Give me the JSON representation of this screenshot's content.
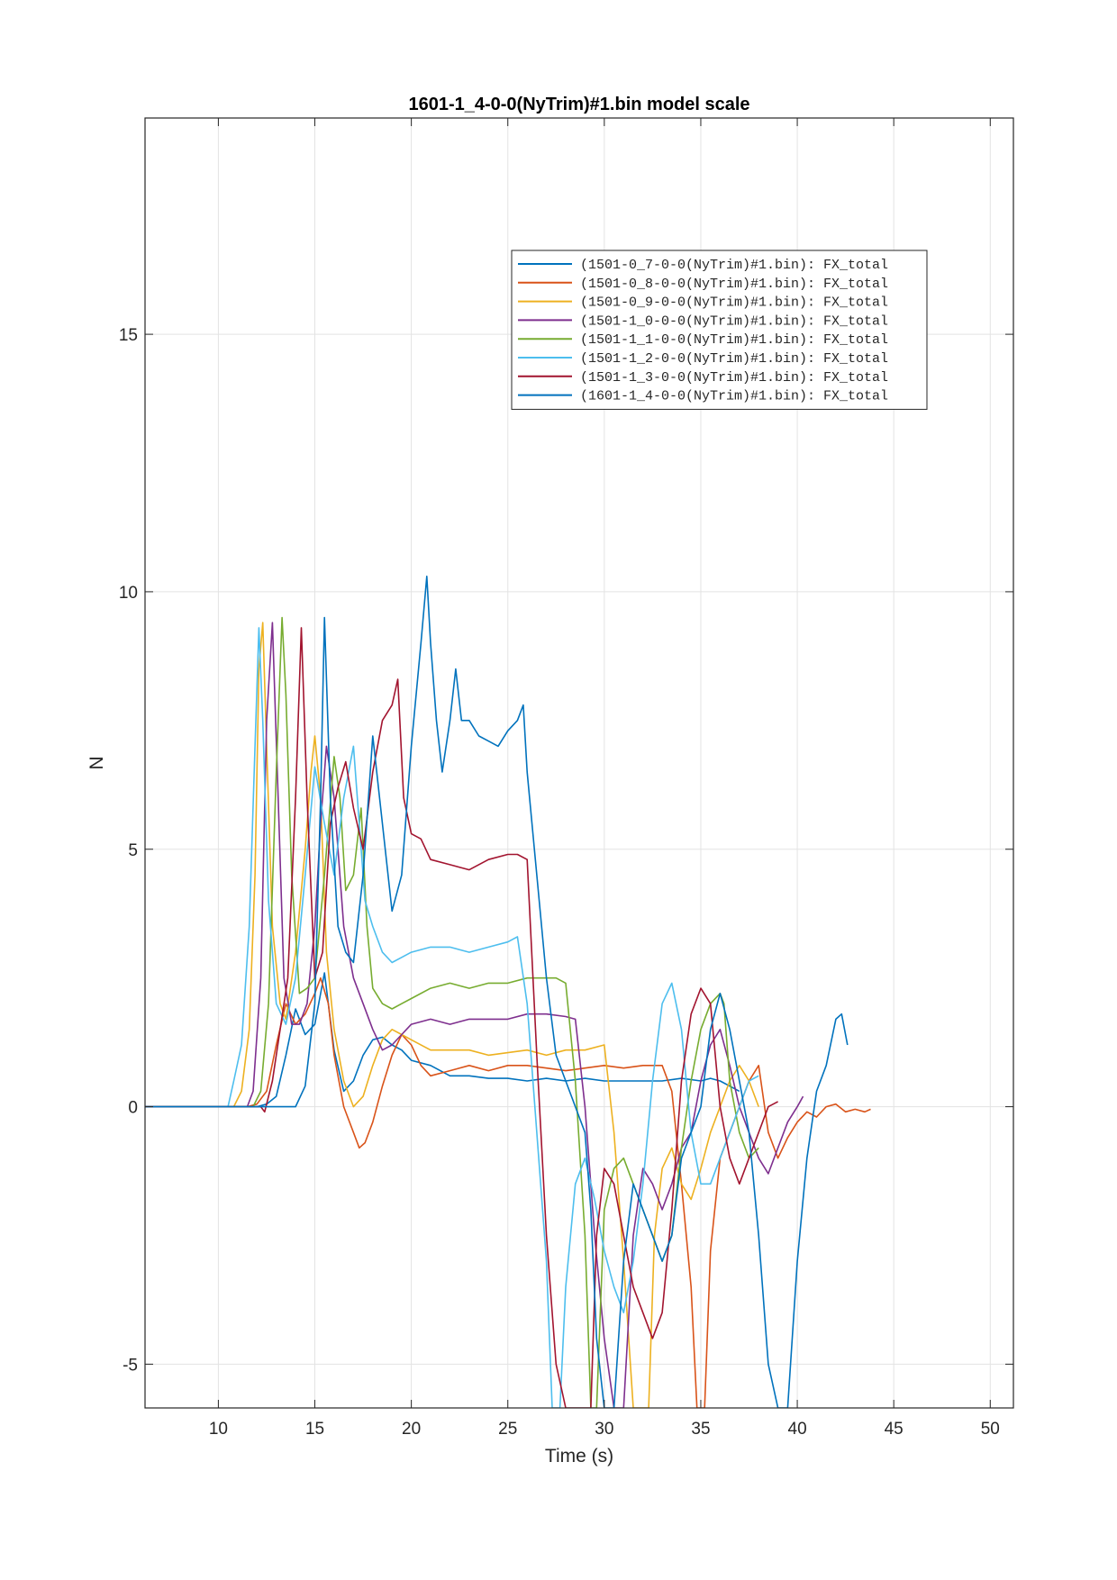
{
  "chart_data": {
    "type": "line",
    "title": "1601-1_4-0-0(NyTrim)#1.bin  model scale",
    "xlabel": "Time (s)",
    "ylabel": "N",
    "xlim": [
      6.2,
      51.2
    ],
    "ylim": [
      -5.85,
      19.2
    ],
    "xticks": [
      10,
      15,
      20,
      25,
      30,
      35,
      40,
      45,
      50
    ],
    "xtick_labels": [
      "10",
      "15",
      "20",
      "25",
      "30",
      "35",
      "40",
      "45",
      "50"
    ],
    "yticks": [
      -5,
      0,
      5,
      10,
      15
    ],
    "ytick_labels": [
      "-5",
      "0",
      "5",
      "10",
      "15"
    ],
    "grid": true,
    "legend_position": "upper-right",
    "series": [
      {
        "name": "(1501-0_7-0-0(NyTrim)#1.bin): FX_total",
        "color": "#0072BD",
        "x": [
          6.2,
          12.0,
          12.5,
          13.0,
          13.5,
          14.0,
          14.5,
          15.0,
          15.5,
          16.0,
          16.5,
          17.0,
          17.5,
          18.0,
          18.5,
          19.0,
          19.5,
          20.0,
          21.0,
          22.0,
          23.0,
          24.0,
          25.0,
          26.0,
          27.0,
          28.0,
          29.0,
          30.0,
          31.0,
          32.0,
          33.0,
          34.0,
          35.0,
          35.5,
          36.0,
          36.5,
          37.0
        ],
        "y": [
          0,
          0,
          0.05,
          0.2,
          1.0,
          1.9,
          1.4,
          1.6,
          2.6,
          1.1,
          0.3,
          0.5,
          1.0,
          1.3,
          1.35,
          1.2,
          1.1,
          0.9,
          0.8,
          0.6,
          0.6,
          0.55,
          0.55,
          0.5,
          0.55,
          0.5,
          0.55,
          0.5,
          0.5,
          0.5,
          0.5,
          0.55,
          0.5,
          0.55,
          0.5,
          0.4,
          0.3
        ]
      },
      {
        "name": "(1501-0_8-0-0(NyTrim)#1.bin): FX_total",
        "color": "#D95319",
        "x": [
          6.2,
          11.5,
          12.0,
          12.5,
          13.0,
          13.5,
          14.0,
          14.5,
          15.0,
          15.3,
          15.7,
          16.0,
          16.5,
          17.0,
          17.3,
          17.6,
          18.0,
          18.5,
          19.0,
          19.5,
          20.0,
          20.5,
          21.0,
          22.0,
          23.0,
          24.0,
          25.0,
          26.0,
          27.0,
          28.0,
          29.0,
          30.0,
          31.0,
          32.0,
          33.0,
          33.5,
          34.0,
          34.5,
          34.8,
          35.0,
          35.2,
          35.5,
          36.0,
          36.5,
          37.0,
          37.5,
          38.0,
          38.5,
          39.0,
          39.5,
          40.0,
          40.5,
          41.0,
          41.5,
          42.0,
          42.5,
          43.0,
          43.5,
          43.8
        ],
        "y": [
          0,
          0,
          0.05,
          0.3,
          1.2,
          2.0,
          1.6,
          1.8,
          2.2,
          2.5,
          2.0,
          1.0,
          0.0,
          -0.5,
          -0.8,
          -0.7,
          -0.3,
          0.4,
          1.0,
          1.4,
          1.2,
          0.8,
          0.6,
          0.7,
          0.8,
          0.7,
          0.8,
          0.8,
          0.75,
          0.7,
          0.75,
          0.8,
          0.75,
          0.8,
          0.8,
          0.3,
          -1.5,
          -3.5,
          -5.85,
          -5.85,
          -5.85,
          -2.8,
          -1.0,
          -0.5,
          0.0,
          0.5,
          0.8,
          -0.5,
          -1.0,
          -0.6,
          -0.3,
          -0.1,
          -0.2,
          0.0,
          0.05,
          -0.1,
          -0.05,
          -0.1,
          -0.05
        ]
      },
      {
        "name": "(1501-0_9-0-0(NyTrim)#1.bin): FX_total",
        "color": "#EDB120",
        "x": [
          6.2,
          10.8,
          11.2,
          11.6,
          11.9,
          12.1,
          12.3,
          12.5,
          12.8,
          13.2,
          13.5,
          14.0,
          14.5,
          14.8,
          15.0,
          15.3,
          15.6,
          16.0,
          16.5,
          17.0,
          17.5,
          18.0,
          18.5,
          19.0,
          19.5,
          20.0,
          21.0,
          22.0,
          23.0,
          24.0,
          25.0,
          26.0,
          27.0,
          28.0,
          29.0,
          30.0,
          30.5,
          31.0,
          31.5,
          32.0,
          32.3,
          32.6,
          33.0,
          33.5,
          34.0,
          34.5,
          35.0,
          35.5,
          36.0,
          36.5,
          37.0,
          37.5,
          38.0
        ],
        "y": [
          0,
          0,
          0.3,
          1.5,
          4.5,
          8.5,
          9.4,
          7.0,
          3.5,
          2.0,
          1.7,
          3.0,
          5.0,
          6.5,
          7.2,
          6.0,
          3.0,
          1.5,
          0.5,
          0.0,
          0.2,
          0.8,
          1.3,
          1.5,
          1.4,
          1.3,
          1.1,
          1.1,
          1.1,
          1.0,
          1.05,
          1.1,
          1.0,
          1.1,
          1.1,
          1.2,
          -0.5,
          -3.0,
          -5.85,
          -5.85,
          -5.85,
          -2.5,
          -1.2,
          -0.8,
          -1.5,
          -1.8,
          -1.2,
          -0.5,
          0.0,
          0.5,
          0.8,
          0.5,
          0.0
        ]
      },
      {
        "name": "(1501-1_0-0-0(NyTrim)#1.bin): FX_total",
        "color": "#7E2F8E",
        "x": [
          6.2,
          11.5,
          11.8,
          12.2,
          12.5,
          12.8,
          13.1,
          13.4,
          13.8,
          14.2,
          14.6,
          15.0,
          15.3,
          15.6,
          16.0,
          16.5,
          17.0,
          17.5,
          18.0,
          18.5,
          19.0,
          19.5,
          20.0,
          21.0,
          22.0,
          23.0,
          24.0,
          25.0,
          26.0,
          27.0,
          28.0,
          28.5,
          29.0,
          29.5,
          30.0,
          30.5,
          31.0,
          31.5,
          32.0,
          32.5,
          33.0,
          33.5,
          34.0,
          34.5,
          35.0,
          35.5,
          36.0,
          36.5,
          37.0,
          37.5,
          38.0,
          38.5,
          39.0,
          39.5,
          40.0,
          40.3
        ],
        "y": [
          0,
          0,
          0.3,
          2.5,
          7.5,
          9.4,
          6.0,
          2.5,
          1.6,
          1.6,
          2.0,
          3.5,
          5.5,
          7.0,
          6.0,
          3.5,
          2.5,
          2.0,
          1.5,
          1.1,
          1.2,
          1.4,
          1.6,
          1.7,
          1.6,
          1.7,
          1.7,
          1.7,
          1.8,
          1.8,
          1.75,
          1.7,
          0.0,
          -2.5,
          -4.5,
          -5.85,
          -5.85,
          -2.5,
          -1.2,
          -1.5,
          -2.0,
          -1.5,
          -0.8,
          -0.5,
          0.5,
          1.2,
          1.5,
          0.8,
          0.0,
          -0.5,
          -1.0,
          -1.3,
          -0.8,
          -0.3,
          0.0,
          0.2
        ]
      },
      {
        "name": "(1501-1_1-0-0(NyTrim)#1.bin): FX_total",
        "color": "#77AC30",
        "x": [
          6.2,
          11.8,
          12.2,
          12.6,
          13.0,
          13.3,
          13.5,
          13.8,
          14.2,
          14.6,
          15.0,
          15.5,
          16.0,
          16.3,
          16.6,
          17.0,
          17.4,
          17.7,
          18.0,
          18.5,
          19.0,
          19.5,
          20.0,
          21.0,
          22.0,
          23.0,
          24.0,
          25.0,
          26.0,
          27.0,
          27.5,
          28.0,
          28.5,
          29.0,
          29.3,
          29.6,
          30.0,
          30.5,
          31.0,
          31.5,
          32.0,
          32.5,
          33.0,
          33.5,
          34.0,
          34.5,
          35.0,
          35.5,
          36.0,
          36.2,
          36.5,
          37.0,
          37.5,
          38.0
        ],
        "y": [
          0,
          0,
          0.3,
          2.0,
          6.5,
          9.5,
          8.0,
          4.5,
          2.2,
          2.3,
          2.5,
          4.5,
          6.8,
          6.0,
          4.2,
          4.5,
          5.8,
          3.5,
          2.3,
          2.0,
          1.9,
          2.0,
          2.1,
          2.3,
          2.4,
          2.3,
          2.4,
          2.4,
          2.5,
          2.5,
          2.5,
          2.4,
          0.5,
          -2.5,
          -5.85,
          -5.85,
          -2.0,
          -1.2,
          -1.0,
          -1.5,
          -2.0,
          -2.5,
          -3.0,
          -2.5,
          -0.8,
          0.5,
          1.5,
          2.0,
          2.2,
          2.0,
          0.5,
          -0.5,
          -1.0,
          -0.8
        ]
      },
      {
        "name": "(1501-1_2-0-0(NyTrim)#1.bin): FX_total",
        "color": "#4DBEEE",
        "x": [
          6.2,
          10.5,
          10.8,
          11.2,
          11.6,
          11.9,
          12.1,
          12.3,
          12.6,
          13.0,
          13.5,
          14.0,
          14.5,
          15.0,
          15.5,
          16.0,
          16.5,
          17.0,
          17.3,
          17.6,
          18.0,
          18.5,
          19.0,
          19.5,
          20.0,
          21.0,
          22.0,
          23.0,
          24.0,
          25.0,
          25.5,
          26.0,
          26.5,
          27.0,
          27.3,
          27.5,
          27.7,
          28.0,
          28.5,
          29.0,
          29.5,
          30.0,
          30.5,
          31.0,
          31.5,
          32.0,
          32.5,
          33.0,
          33.5,
          34.0,
          34.5,
          35.0,
          35.5,
          36.0,
          36.5,
          37.0,
          37.5,
          38.0
        ],
        "y": [
          0,
          0,
          0.5,
          1.2,
          3.5,
          7.0,
          9.3,
          7.5,
          4.0,
          2.0,
          1.6,
          2.5,
          4.5,
          6.6,
          5.5,
          4.5,
          6.0,
          7.0,
          5.5,
          4.0,
          3.5,
          3.0,
          2.8,
          2.9,
          3.0,
          3.1,
          3.1,
          3.0,
          3.1,
          3.2,
          3.3,
          2.0,
          -0.5,
          -3.0,
          -5.85,
          -5.85,
          -5.85,
          -3.5,
          -1.5,
          -1.0,
          -1.8,
          -2.8,
          -3.5,
          -4.0,
          -3.0,
          -1.5,
          0.5,
          2.0,
          2.4,
          1.5,
          -0.5,
          -1.5,
          -1.5,
          -1.0,
          -0.5,
          0.0,
          0.5,
          0.6
        ]
      },
      {
        "name": "(1501-1_3-0-0(NyTrim)#1.bin): FX_total",
        "color": "#A2142F",
        "x": [
          6.2,
          12.2,
          12.4,
          12.8,
          13.2,
          13.6,
          14.0,
          14.3,
          14.6,
          15.0,
          15.4,
          15.8,
          16.2,
          16.6,
          17.0,
          17.5,
          18.0,
          18.5,
          19.0,
          19.3,
          19.6,
          20.0,
          20.5,
          21.0,
          22.0,
          23.0,
          24.0,
          25.0,
          25.5,
          26.0,
          26.5,
          27.0,
          27.5,
          28.0,
          28.5,
          29.0,
          29.3,
          29.6,
          30.0,
          30.5,
          31.0,
          31.5,
          32.0,
          32.5,
          33.0,
          33.5,
          34.0,
          34.5,
          35.0,
          35.5,
          36.0,
          36.5,
          37.0,
          37.5,
          38.0,
          38.5,
          39.0
        ],
        "y": [
          0,
          0,
          -0.1,
          0.5,
          1.5,
          2.5,
          6.0,
          9.3,
          6.0,
          2.5,
          3.0,
          5.5,
          6.2,
          6.7,
          5.8,
          5.0,
          6.5,
          7.5,
          7.8,
          8.3,
          6.0,
          5.3,
          5.2,
          4.8,
          4.7,
          4.6,
          4.8,
          4.9,
          4.9,
          4.8,
          1.0,
          -2.5,
          -5.0,
          -5.85,
          -5.85,
          -5.85,
          -5.85,
          -2.5,
          -1.2,
          -1.5,
          -2.5,
          -3.5,
          -4.0,
          -4.5,
          -4.0,
          -2.0,
          0.5,
          1.8,
          2.3,
          2.0,
          0.0,
          -1.0,
          -1.5,
          -1.0,
          -0.5,
          0.0,
          0.1
        ]
      },
      {
        "name": "(1601-1_4-0-0(NyTrim)#1.bin): FX_total",
        "color": "#0072BD",
        "x": [
          6.2,
          13.5,
          14.0,
          14.5,
          15.0,
          15.3,
          15.5,
          15.8,
          16.2,
          16.6,
          17.0,
          17.5,
          18.0,
          18.5,
          19.0,
          19.5,
          20.0,
          20.5,
          20.8,
          21.0,
          21.3,
          21.6,
          22.0,
          22.3,
          22.6,
          23.0,
          23.5,
          24.0,
          24.5,
          25.0,
          25.5,
          25.8,
          26.0,
          26.5,
          27.0,
          27.5,
          28.0,
          28.5,
          29.0,
          29.3,
          29.6,
          30.0,
          30.5,
          31.0,
          31.5,
          32.0,
          32.5,
          33.0,
          33.5,
          34.0,
          34.5,
          35.0,
          35.5,
          36.0,
          36.5,
          37.0,
          37.5,
          38.0,
          38.5,
          39.0,
          39.5,
          40.0,
          40.5,
          41.0,
          41.5,
          42.0,
          42.3,
          42.6
        ],
        "y": [
          0,
          0,
          0.0,
          0.4,
          2.0,
          6.0,
          9.5,
          6.0,
          3.5,
          3.0,
          2.8,
          4.5,
          7.2,
          5.5,
          3.8,
          4.5,
          7.0,
          9.0,
          10.3,
          9.0,
          7.5,
          6.5,
          7.5,
          8.5,
          7.5,
          7.5,
          7.2,
          7.1,
          7.0,
          7.3,
          7.5,
          7.8,
          6.5,
          4.5,
          2.5,
          1.0,
          0.5,
          0.0,
          -0.5,
          -2.0,
          -4.5,
          -5.85,
          -5.85,
          -3.0,
          -1.5,
          -2.0,
          -2.5,
          -3.0,
          -2.5,
          -1.0,
          -0.5,
          0.0,
          1.5,
          2.2,
          1.5,
          0.5,
          -0.5,
          -2.5,
          -5.0,
          -5.85,
          -5.85,
          -3.0,
          -1.0,
          0.3,
          0.8,
          1.7,
          1.8,
          1.2
        ]
      }
    ]
  }
}
